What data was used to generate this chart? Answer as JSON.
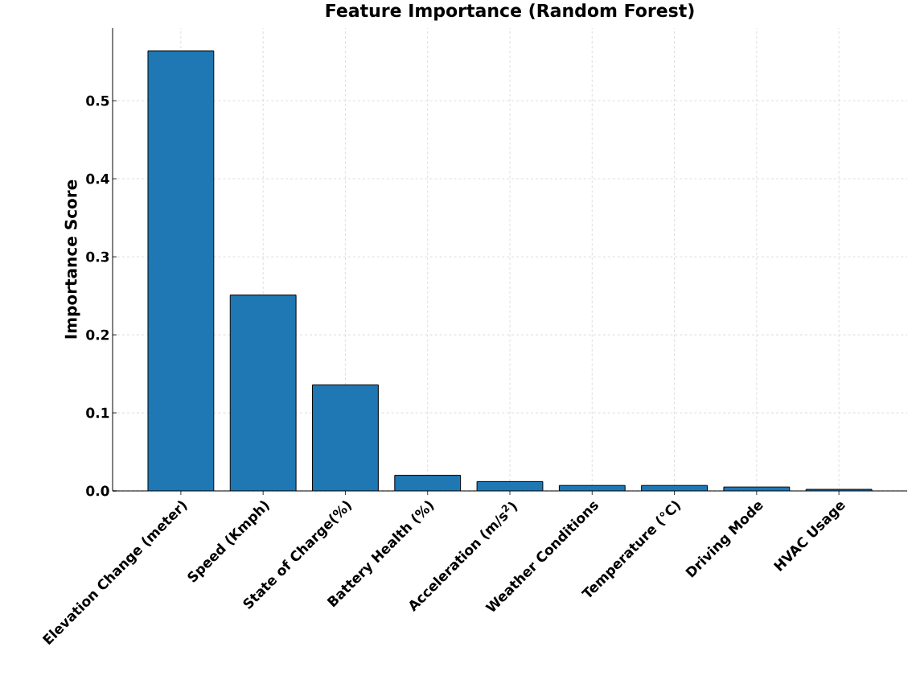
{
  "chart_data": {
    "type": "bar",
    "title": "Feature Importance (Random Forest)",
    "ylabel": "Importance Score",
    "categories": [
      "Elevation Change (meter)",
      "Speed (Kmph)",
      "State of Charge(%)",
      "Battery Health (%)",
      "Acceleration (m/s$^{2}$)",
      "Weather Conditions",
      "Temperature (°C)",
      "Driving Mode",
      "HVAC Usage"
    ],
    "values": [
      0.564,
      0.251,
      0.136,
      0.02,
      0.012,
      0.007,
      0.007,
      0.005,
      0.002
    ],
    "color": "#1f77b4",
    "ylim": [
      0,
      0.593
    ],
    "yticks": [
      {
        "value": 0,
        "label": "0.0"
      },
      {
        "value": 0.1,
        "label": "0.1"
      },
      {
        "value": 0.2,
        "label": "0.2"
      },
      {
        "value": 0.3,
        "label": "0.3"
      },
      {
        "value": 0.4,
        "label": "0.4"
      },
      {
        "value": 0.5,
        "label": "0.5"
      }
    ],
    "grid": true
  }
}
